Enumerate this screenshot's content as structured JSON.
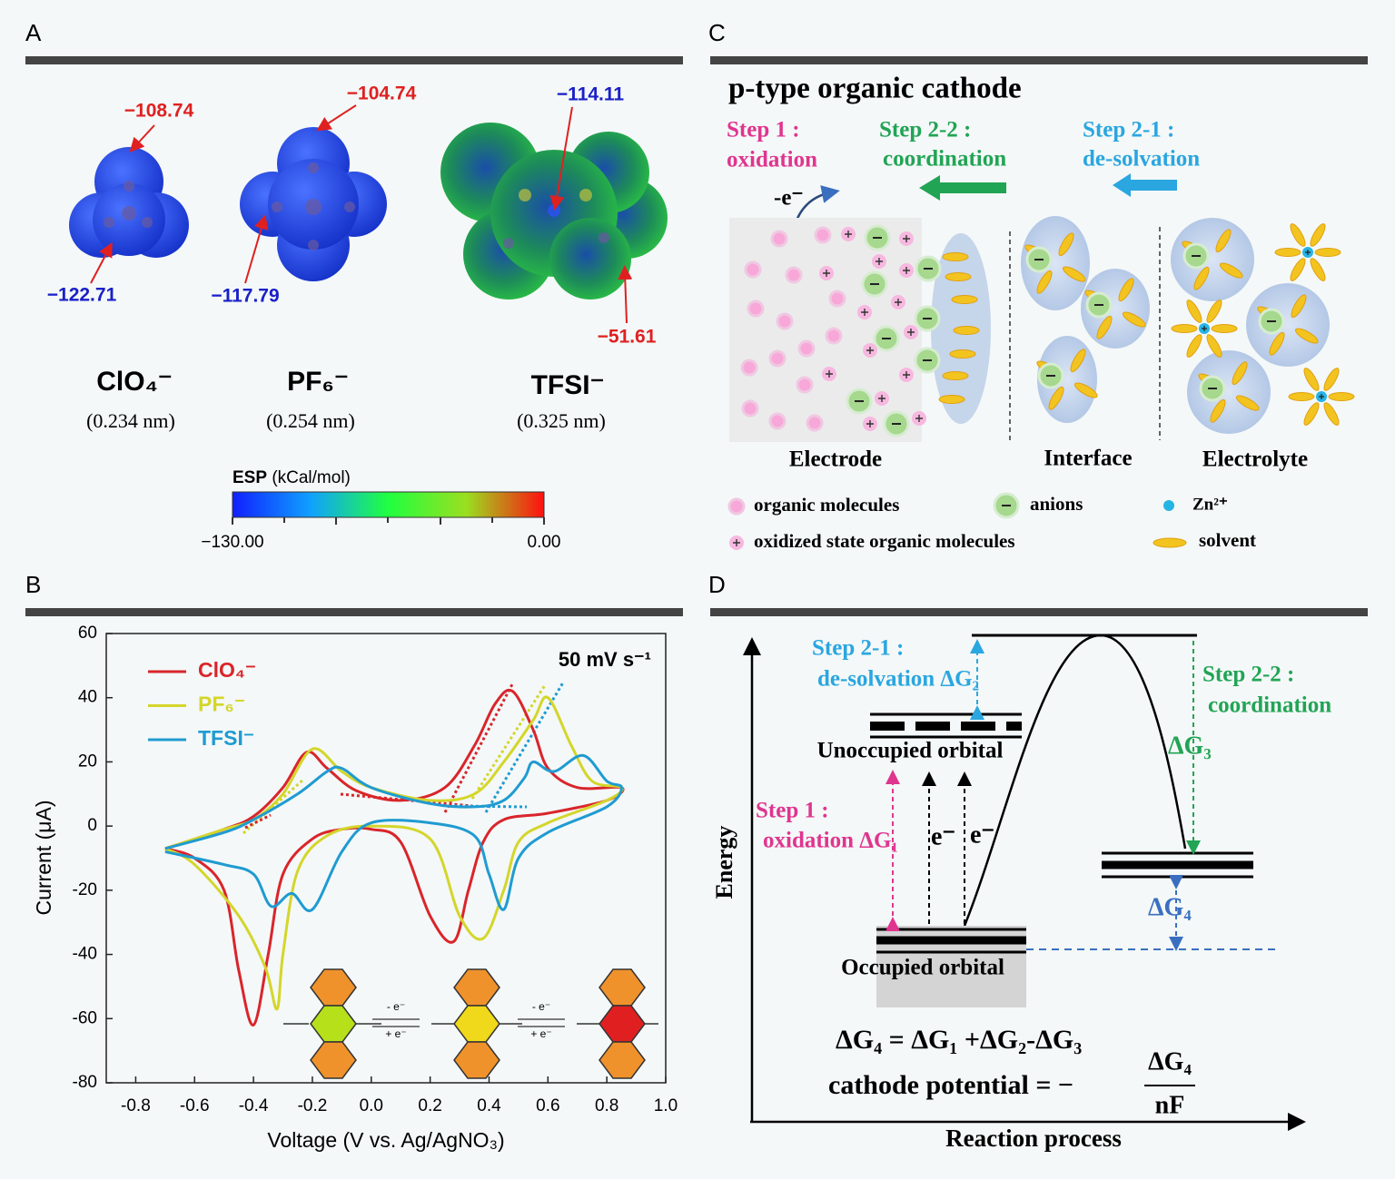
{
  "panel_labels": [
    "A",
    "B",
    "C",
    "D"
  ],
  "panel_a": {
    "anions": [
      {
        "name": "ClO₄⁻",
        "size": "(0.234 nm)",
        "top_value": "−108.74",
        "bottom_value": "−122.71"
      },
      {
        "name": "PF₆⁻",
        "size": "(0.254 nm)",
        "top_value": "−104.74",
        "bottom_value": "−117.79"
      },
      {
        "name": "TFSI⁻",
        "size": "(0.325 nm)",
        "top_value": "−114.11",
        "bottom_value": "−51.61"
      }
    ],
    "colorbar": {
      "title": "ESP",
      "unit": "(kCal/mol)",
      "min_label": "−130.00",
      "max_label": "0.00"
    }
  },
  "chart_data": {
    "type": "line",
    "annotation": "50 mV s⁻¹",
    "xlabel": "Voltage (V vs. Ag/AgNO₃)",
    "ylabel": "Current (μA)",
    "xlim": [
      -0.9,
      1.0
    ],
    "ylim": [
      -80,
      60
    ],
    "xticks": [
      -0.8,
      -0.6,
      -0.4,
      -0.2,
      {
        "value": 0,
        "label": "0.0"
      },
      0.2,
      0.4,
      0.6,
      0.8,
      {
        "value": 1,
        "label": "1.0"
      }
    ],
    "yticks": [
      60,
      40,
      20,
      0,
      -20,
      -40,
      -60,
      -80
    ],
    "legend": "upper left",
    "series": [
      {
        "name": "ClO₄⁻",
        "color": "#d9252b",
        "x": [
          -0.7,
          -0.5,
          -0.4,
          -0.3,
          -0.22,
          -0.15,
          -0.05,
          0.1,
          0.25,
          0.35,
          0.42,
          0.48,
          0.55,
          0.6,
          0.7,
          0.85,
          0.8,
          0.6,
          0.45,
          0.38,
          0.33,
          0.28,
          0.2,
          0.1,
          0.0,
          -0.1,
          -0.2,
          -0.3,
          -0.35,
          -0.4,
          -0.45,
          -0.5,
          -0.6,
          -0.7
        ],
        "values": [
          -7,
          -1,
          3,
          12,
          23,
          18,
          11,
          8,
          12,
          25,
          38,
          42,
          30,
          18,
          12,
          12,
          8,
          4,
          2,
          -5,
          -20,
          -36,
          -28,
          -5,
          -1,
          -1,
          -4,
          -15,
          -40,
          -62,
          -45,
          -20,
          -10,
          -7
        ]
      },
      {
        "name": "PF₆⁻",
        "color": "#d4d62a",
        "x": [
          -0.7,
          -0.5,
          -0.4,
          -0.3,
          -0.2,
          -0.1,
          0.0,
          0.2,
          0.35,
          0.45,
          0.55,
          0.6,
          0.68,
          0.75,
          0.85,
          0.8,
          0.6,
          0.5,
          0.45,
          0.38,
          0.3,
          0.2,
          0.0,
          -0.15,
          -0.25,
          -0.3,
          -0.32,
          -0.36,
          -0.45,
          -0.6,
          -0.7
        ],
        "values": [
          -7,
          -1,
          2,
          10,
          24,
          17,
          12,
          8,
          10,
          20,
          33,
          40,
          25,
          14,
          12,
          8,
          1,
          -5,
          -20,
          -35,
          -28,
          -4,
          0,
          -3,
          -14,
          -40,
          -57,
          -44,
          -28,
          -12,
          -7
        ]
      },
      {
        "name": "TFSI⁻",
        "color": "#1f9bd1",
        "x": [
          -0.7,
          -0.5,
          -0.4,
          -0.25,
          -0.15,
          -0.1,
          0.0,
          0.2,
          0.35,
          0.45,
          0.52,
          0.55,
          0.62,
          0.72,
          0.8,
          0.85,
          0.8,
          0.6,
          0.5,
          0.45,
          0.4,
          0.35,
          0.2,
          0.0,
          -0.1,
          -0.2,
          -0.27,
          -0.34,
          -0.4,
          -0.5,
          -0.7
        ],
        "values": [
          -7,
          -2,
          2,
          10,
          17,
          18,
          12,
          7,
          6,
          8,
          15,
          20,
          17,
          22,
          14,
          12,
          6,
          -2,
          -10,
          -26,
          -15,
          -3,
          1,
          1,
          -8,
          -26,
          -21,
          -25,
          -15,
          -12,
          -8
        ]
      }
    ],
    "inset": {
      "ox_label": "- e⁻",
      "red_label": "+ e⁻"
    }
  },
  "panel_c": {
    "title": "p-type organic cathode",
    "step1": [
      "Step 1 :",
      "oxidation"
    ],
    "step22": [
      "Step 2-2 :",
      "coordination"
    ],
    "step21": [
      "Step 2-1 :",
      "de-solvation"
    ],
    "electron": "-e⁻",
    "regions": [
      "Electrode",
      "Interface",
      "Electrolyte"
    ],
    "legend": [
      "organic molecules",
      "anions",
      "Zn²⁺",
      "oxidized state organic molecules",
      "solvent"
    ]
  },
  "panel_d": {
    "step21": [
      "Step 2-1 :",
      "de-solvation ΔG₂"
    ],
    "unoccupied": "Unoccupied orbital",
    "step1": [
      "Step 1 :",
      "oxidation ΔG₁"
    ],
    "electrons": [
      "e⁻",
      "e⁻"
    ],
    "step22": [
      "Step 2-2 :",
      "coordination"
    ],
    "dg3": "ΔG₃",
    "dg4": "ΔG₄",
    "occupied": "Occupied orbital",
    "ylabel": "Energy",
    "xlabel": "Reaction process",
    "equation": "ΔG₄ = ΔG₁ +ΔG₂-ΔG₃",
    "potential": "cathode potential = −",
    "numerator": "ΔG₄",
    "denominator": "nF"
  }
}
